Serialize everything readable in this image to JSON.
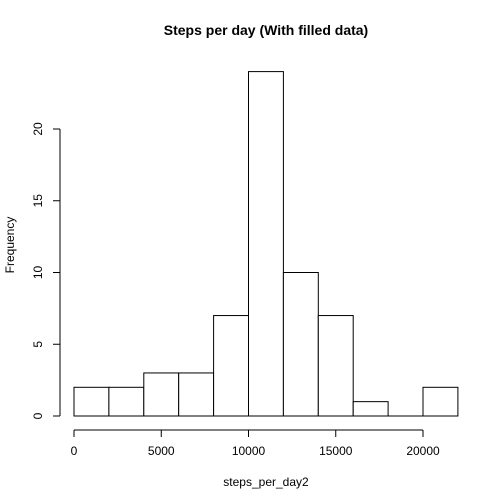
{
  "chart_data": {
    "type": "bar",
    "title": "Steps per day (With filled data)",
    "xlabel": "steps_per_day2",
    "ylabel": "Frequency",
    "bins": [
      {
        "start": 0,
        "end": 2000,
        "count": 2
      },
      {
        "start": 2000,
        "end": 4000,
        "count": 2
      },
      {
        "start": 4000,
        "end": 6000,
        "count": 3
      },
      {
        "start": 6000,
        "end": 8000,
        "count": 3
      },
      {
        "start": 8000,
        "end": 10000,
        "count": 7
      },
      {
        "start": 10000,
        "end": 12000,
        "count": 24
      },
      {
        "start": 12000,
        "end": 14000,
        "count": 10
      },
      {
        "start": 14000,
        "end": 16000,
        "count": 7
      },
      {
        "start": 16000,
        "end": 18000,
        "count": 1
      },
      {
        "start": 18000,
        "end": 20000,
        "count": 0
      },
      {
        "start": 20000,
        "end": 22000,
        "count": 2
      }
    ],
    "xticks": [
      "0",
      "5000",
      "10000",
      "15000",
      "20000"
    ],
    "yticks": [
      "0",
      "5",
      "10",
      "15",
      "20"
    ],
    "xlim": [
      0,
      22000
    ],
    "ylim": [
      0,
      24
    ],
    "grid": false,
    "colors": {
      "bar_fill": "#ffffff",
      "bar_stroke": "#000000"
    }
  }
}
